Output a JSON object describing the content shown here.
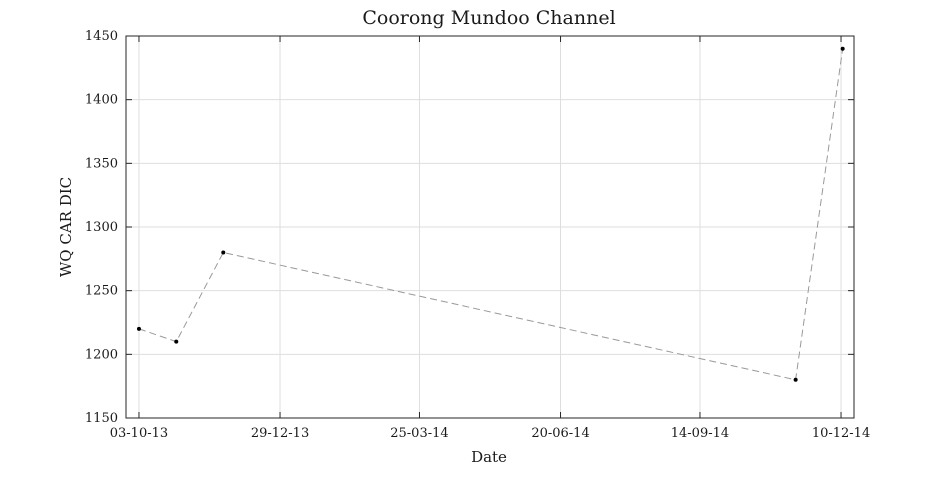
{
  "chart_data": {
    "type": "line",
    "title": "Coorong Mundoo Channel",
    "xlabel": "Date",
    "ylabel": "WQ CAR DIC",
    "x_ticks": [
      "03-10-13",
      "29-12-13",
      "25-03-14",
      "20-06-14",
      "14-09-14",
      "10-12-14"
    ],
    "xlim": [
      "2013-09-25",
      "2014-12-18"
    ],
    "ylim": [
      1150,
      1450
    ],
    "y_ticks": [
      1150,
      1200,
      1250,
      1300,
      1350,
      1400,
      1450
    ],
    "grid": true,
    "series": [
      {
        "line_style": "dashed",
        "line_color": "#999999",
        "marker_color": "#000000",
        "points": [
          {
            "x": "2013-10-03",
            "y": 1220
          },
          {
            "x": "2013-10-26",
            "y": 1210
          },
          {
            "x": "2013-11-24",
            "y": 1280
          },
          {
            "x": "2014-11-12",
            "y": 1180
          },
          {
            "x": "2014-12-11",
            "y": 1440
          }
        ]
      }
    ]
  }
}
